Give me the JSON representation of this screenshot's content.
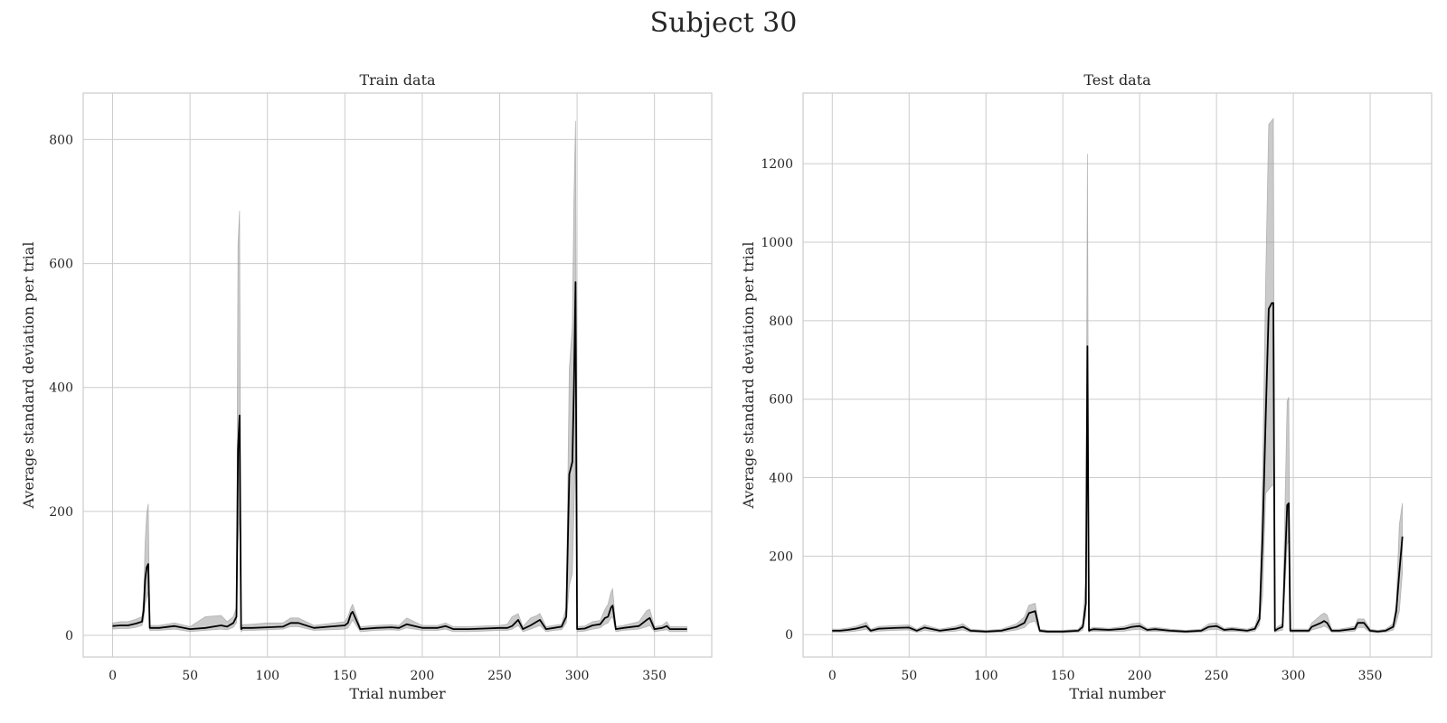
{
  "figure": {
    "suptitle": "Subject 30"
  },
  "chart_data": [
    {
      "type": "line",
      "title": "Train data",
      "xlabel": "Trial number",
      "ylabel": "Average standard deviation per trial",
      "xlim": [
        -19,
        387
      ],
      "ylim": [
        -35,
        875
      ],
      "xticks": [
        0,
        50,
        100,
        150,
        200,
        250,
        300,
        350
      ],
      "yticks": [
        0,
        200,
        400,
        600,
        800
      ],
      "grid": true,
      "colors": {
        "line": "#000000",
        "band": "#9e9e9e",
        "grid": "#cccccc",
        "frame": "#cccccc"
      },
      "series": [
        {
          "x": [
            0,
            5,
            10,
            15,
            19,
            20,
            21,
            22,
            23,
            24,
            30,
            40,
            50,
            60,
            70,
            74,
            78,
            80,
            81,
            82,
            83,
            84,
            90,
            100,
            110,
            115,
            120,
            130,
            140,
            150,
            152,
            154,
            155,
            160,
            170,
            180,
            185,
            190,
            200,
            210,
            215,
            220,
            230,
            240,
            250,
            255,
            258,
            262,
            265,
            270,
            274,
            276,
            280,
            285,
            290,
            293,
            295,
            297,
            298,
            299,
            300,
            305,
            310,
            315,
            318,
            320,
            322,
            323,
            325,
            330,
            340,
            345,
            347,
            350,
            355,
            358,
            360,
            365,
            371
          ],
          "y": [
            15,
            16,
            16,
            19,
            22,
            40,
            90,
            110,
            115,
            12,
            12,
            15,
            10,
            12,
            16,
            14,
            20,
            30,
            300,
            355,
            10,
            12,
            12,
            13,
            14,
            20,
            20,
            12,
            14,
            16,
            20,
            35,
            38,
            10,
            12,
            13,
            12,
            18,
            12,
            12,
            15,
            10,
            10,
            11,
            12,
            12,
            15,
            25,
            10,
            16,
            22,
            25,
            10,
            12,
            14,
            30,
            260,
            280,
            400,
            570,
            10,
            11,
            16,
            18,
            28,
            30,
            45,
            48,
            10,
            12,
            15,
            25,
            28,
            10,
            12,
            15,
            10,
            10,
            10
          ],
          "lower": [
            10,
            11,
            11,
            13,
            16,
            25,
            50,
            60,
            70,
            8,
            8,
            10,
            6,
            8,
            10,
            9,
            13,
            20,
            150,
            200,
            6,
            8,
            8,
            9,
            10,
            14,
            14,
            8,
            9,
            10,
            12,
            20,
            25,
            6,
            8,
            9,
            8,
            12,
            8,
            8,
            10,
            6,
            6,
            7,
            8,
            8,
            10,
            16,
            6,
            10,
            14,
            16,
            6,
            8,
            9,
            20,
            80,
            100,
            200,
            300,
            6,
            7,
            10,
            12,
            18,
            20,
            28,
            30,
            6,
            8,
            10,
            14,
            16,
            6,
            8,
            9,
            6,
            6,
            6
          ],
          "upper": [
            20,
            22,
            22,
            26,
            30,
            60,
            150,
            195,
            212,
            16,
            16,
            20,
            14,
            30,
            32,
            22,
            30,
            45,
            630,
            685,
            14,
            17,
            18,
            20,
            20,
            28,
            28,
            16,
            19,
            22,
            30,
            45,
            50,
            14,
            16,
            17,
            16,
            28,
            16,
            16,
            20,
            14,
            14,
            15,
            16,
            18,
            30,
            35,
            14,
            28,
            32,
            35,
            14,
            16,
            18,
            45,
            430,
            500,
            700,
            830,
            14,
            15,
            22,
            24,
            42,
            50,
            70,
            75,
            14,
            16,
            22,
            40,
            42,
            14,
            16,
            22,
            14,
            14,
            14
          ]
        }
      ]
    },
    {
      "type": "line",
      "title": "Test data",
      "xlabel": "Trial number",
      "ylabel": "Average standard deviation per trial",
      "xlim": [
        -19,
        390
      ],
      "ylim": [
        -57,
        1380
      ],
      "xticks": [
        0,
        50,
        100,
        150,
        200,
        250,
        300,
        350
      ],
      "yticks": [
        0,
        200,
        400,
        600,
        800,
        1000,
        1200
      ],
      "grid": true,
      "colors": {
        "line": "#000000",
        "band": "#9e9e9e",
        "grid": "#cccccc",
        "frame": "#cccccc"
      },
      "series": [
        {
          "x": [
            0,
            5,
            10,
            15,
            20,
            22,
            25,
            30,
            40,
            50,
            55,
            60,
            70,
            80,
            85,
            90,
            100,
            110,
            120,
            125,
            128,
            132,
            135,
            140,
            150,
            160,
            163,
            165,
            166,
            167,
            168,
            170,
            180,
            190,
            195,
            200,
            205,
            210,
            220,
            230,
            240,
            245,
            250,
            255,
            260,
            270,
            275,
            278,
            280,
            282,
            284,
            286,
            287,
            288,
            290,
            293,
            296,
            297,
            298,
            299,
            300,
            305,
            310,
            312,
            318,
            320,
            322,
            325,
            330,
            340,
            342,
            346,
            350,
            355,
            360,
            365,
            367,
            369,
            371
          ],
          "y": [
            10,
            10,
            12,
            15,
            20,
            22,
            10,
            15,
            17,
            18,
            10,
            18,
            10,
            15,
            20,
            10,
            8,
            10,
            20,
            30,
            55,
            60,
            10,
            8,
            8,
            10,
            20,
            80,
            735,
            10,
            12,
            14,
            12,
            15,
            20,
            22,
            12,
            14,
            10,
            8,
            10,
            20,
            22,
            12,
            14,
            10,
            15,
            40,
            250,
            550,
            830,
            845,
            845,
            10,
            15,
            20,
            330,
            335,
            10,
            10,
            10,
            10,
            10,
            20,
            30,
            35,
            30,
            10,
            10,
            15,
            30,
            30,
            10,
            8,
            10,
            20,
            60,
            160,
            250
          ],
          "lower": [
            6,
            6,
            7,
            9,
            12,
            14,
            6,
            9,
            11,
            12,
            6,
            11,
            6,
            9,
            12,
            6,
            5,
            6,
            12,
            18,
            30,
            35,
            6,
            5,
            5,
            6,
            12,
            50,
            500,
            6,
            8,
            9,
            8,
            9,
            12,
            14,
            8,
            9,
            6,
            5,
            6,
            12,
            14,
            8,
            9,
            6,
            9,
            25,
            100,
            360,
            370,
            380,
            380,
            6,
            9,
            12,
            230,
            240,
            6,
            6,
            6,
            6,
            6,
            12,
            18,
            22,
            18,
            6,
            6,
            9,
            18,
            18,
            6,
            5,
            6,
            12,
            30,
            60,
            160
          ],
          "upper": [
            14,
            14,
            17,
            21,
            28,
            32,
            14,
            21,
            23,
            25,
            14,
            25,
            14,
            21,
            28,
            14,
            11,
            14,
            28,
            45,
            75,
            80,
            14,
            11,
            11,
            14,
            28,
            150,
            1225,
            14,
            16,
            19,
            16,
            21,
            28,
            30,
            16,
            19,
            14,
            11,
            14,
            28,
            30,
            16,
            19,
            14,
            21,
            60,
            400,
            900,
            1300,
            1310,
            1315,
            14,
            21,
            28,
            595,
            605,
            14,
            14,
            14,
            14,
            14,
            30,
            50,
            55,
            50,
            14,
            14,
            21,
            40,
            40,
            14,
            11,
            14,
            28,
            80,
            280,
            335
          ]
        }
      ]
    }
  ]
}
